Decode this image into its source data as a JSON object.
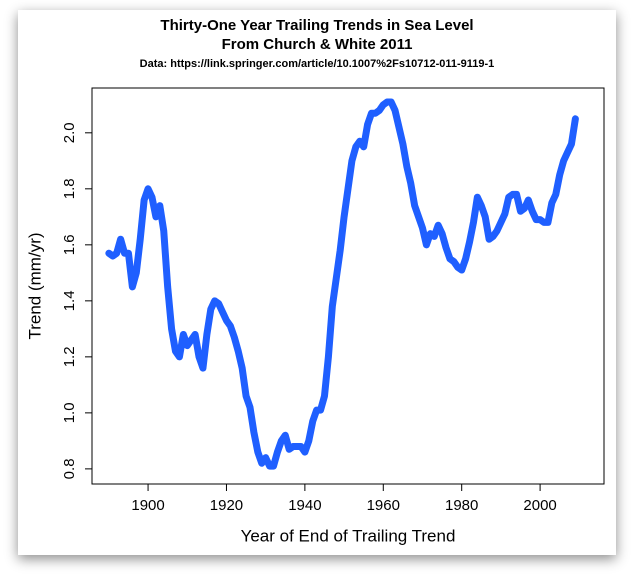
{
  "chart_data": {
    "type": "line",
    "title": [
      "Thirty-One Year Trailing Trends in Sea Level",
      "From Church & White 2011"
    ],
    "subtitle": "Data: https://link.springer.com/article/10.1007%2Fs10712-011-9119-1",
    "x_label": "Year of End of Trailing Trend",
    "y_label": "Trend (mm/yr)",
    "x": [
      1890,
      1891,
      1892,
      1893,
      1894,
      1895,
      1896,
      1897,
      1898,
      1899,
      1900,
      1901,
      1902,
      1903,
      1904,
      1905,
      1906,
      1907,
      1908,
      1909,
      1910,
      1911,
      1912,
      1913,
      1914,
      1915,
      1916,
      1917,
      1918,
      1919,
      1920,
      1921,
      1922,
      1923,
      1924,
      1925,
      1926,
      1927,
      1928,
      1929,
      1930,
      1931,
      1932,
      1933,
      1934,
      1935,
      1936,
      1937,
      1938,
      1939,
      1940,
      1941,
      1942,
      1943,
      1944,
      1945,
      1946,
      1947,
      1948,
      1949,
      1950,
      1951,
      1952,
      1953,
      1954,
      1955,
      1956,
      1957,
      1958,
      1959,
      1960,
      1961,
      1962,
      1963,
      1964,
      1965,
      1966,
      1967,
      1968,
      1969,
      1970,
      1971,
      1972,
      1973,
      1974,
      1975,
      1976,
      1977,
      1978,
      1979,
      1980,
      1981,
      1982,
      1983,
      1984,
      1985,
      1986,
      1987,
      1988,
      1989,
      1990,
      1991,
      1992,
      1993,
      1994,
      1995,
      1996,
      1997,
      1998,
      1999,
      2000,
      2001,
      2002,
      2003,
      2004,
      2005,
      2006,
      2007,
      2008,
      2009
    ],
    "series": [
      {
        "color": "#1f5fff",
        "values": [
          1.57,
          1.56,
          1.57,
          1.62,
          1.57,
          1.57,
          1.45,
          1.5,
          1.62,
          1.76,
          1.8,
          1.77,
          1.7,
          1.74,
          1.65,
          1.45,
          1.3,
          1.22,
          1.2,
          1.28,
          1.24,
          1.26,
          1.28,
          1.2,
          1.16,
          1.28,
          1.37,
          1.4,
          1.39,
          1.36,
          1.33,
          1.31,
          1.27,
          1.22,
          1.16,
          1.06,
          1.02,
          0.93,
          0.86,
          0.82,
          0.84,
          0.81,
          0.81,
          0.86,
          0.9,
          0.92,
          0.87,
          0.88,
          0.88,
          0.88,
          0.86,
          0.9,
          0.97,
          1.01,
          1.01,
          1.06,
          1.2,
          1.38,
          1.48,
          1.58,
          1.7,
          1.8,
          1.9,
          1.95,
          1.97,
          1.95,
          2.03,
          2.07,
          2.07,
          2.08,
          2.1,
          2.11,
          2.11,
          2.08,
          2.02,
          1.96,
          1.88,
          1.82,
          1.74,
          1.7,
          1.66,
          1.6,
          1.64,
          1.63,
          1.67,
          1.64,
          1.59,
          1.55,
          1.54,
          1.52,
          1.51,
          1.55,
          1.61,
          1.68,
          1.77,
          1.74,
          1.7,
          1.62,
          1.63,
          1.65,
          1.68,
          1.71,
          1.77,
          1.78,
          1.78,
          1.72,
          1.73,
          1.76,
          1.72,
          1.69,
          1.69,
          1.68,
          1.68,
          1.75,
          1.78,
          1.85,
          1.9,
          1.93,
          1.96,
          2.05
        ]
      }
    ],
    "xlim": [
      1885.7,
      2016.3
    ],
    "ylim": [
      0.746,
      2.16
    ],
    "xticks": [
      1900,
      1920,
      1940,
      1960,
      1980,
      2000
    ],
    "yticks": [
      0.8,
      {
        "value": 1,
        "label": "1.0"
      },
      1.2,
      1.4,
      1.6,
      1.8,
      {
        "value": 2,
        "label": "2.0"
      }
    ]
  }
}
